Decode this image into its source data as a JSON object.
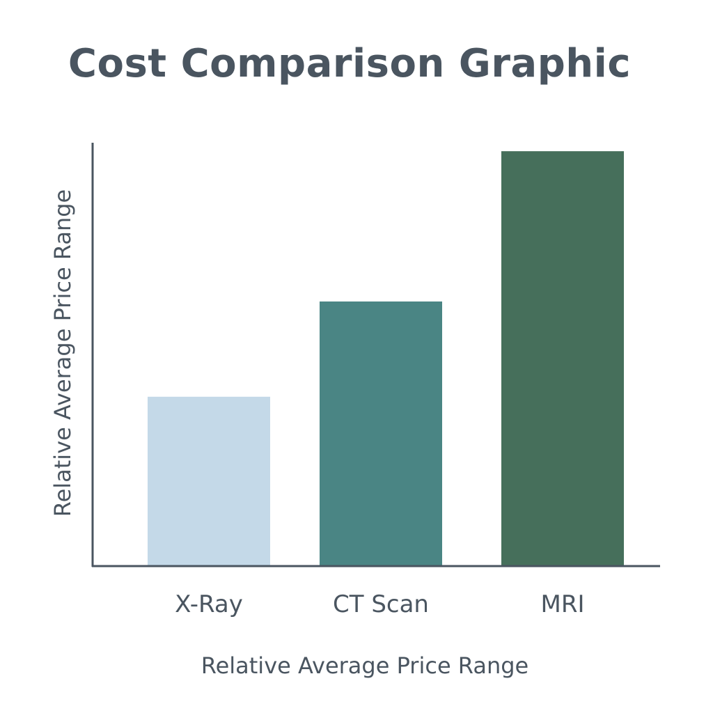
{
  "colors": {
    "text": "#4a5560",
    "axis": "#4a5560",
    "background": "#ffffff"
  },
  "chart_data": {
    "type": "bar",
    "title": "Cost Comparison Graphic",
    "xlabel": "Relative Average Price Range",
    "ylabel": "Relative Average Price Range",
    "categories": [
      "X-Ray",
      "CT Scan",
      "MRI"
    ],
    "values": [
      40,
      62.5,
      98
    ],
    "colors": [
      "#c4d9e8",
      "#4a8584",
      "#466f5b"
    ],
    "ylim": [
      0,
      100
    ],
    "grid": false,
    "legend": "none"
  }
}
